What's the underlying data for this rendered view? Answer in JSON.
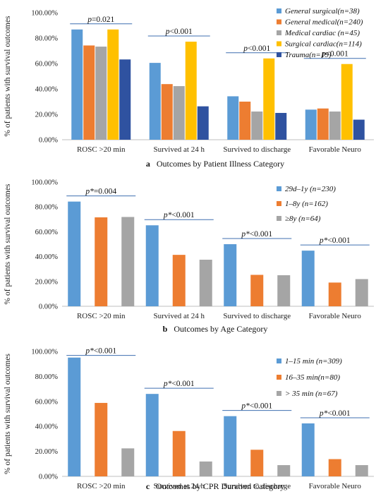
{
  "colors": {
    "blue": "#5b9bd5",
    "orange": "#ed7d31",
    "gray": "#a5a5a5",
    "gold": "#ffc000",
    "navy": "#2f52a0",
    "pline": "#3f6fb0"
  },
  "chart_data": [
    {
      "type": "bar",
      "caption_letter": "a",
      "caption": "Outcomes by Patient Illness Category",
      "ylabel": "% of patients with  survival outcomes",
      "yticks": [
        "0.00%",
        "20.00%",
        "40.00%",
        "60.00%",
        "80.00%",
        "100.00%"
      ],
      "ylim": [
        0,
        100
      ],
      "categories": [
        "ROSC >20 min",
        "Survived at 24 h",
        "Survived to discharge",
        "Favorable Neuro"
      ],
      "pvalues": [
        "p=0.021",
        "p<0.001",
        "p<0.001",
        "p<0.001"
      ],
      "legend_position": "top-right",
      "series": [
        {
          "name": "General surgical(n=38)",
          "color": "blue",
          "values": [
            86.8,
            60.5,
            34.2,
            23.7
          ]
        },
        {
          "name": "General medical(n=240)",
          "color": "orange",
          "values": [
            74.2,
            43.8,
            30.0,
            24.6
          ]
        },
        {
          "name": "Medical cardiac (n=45)",
          "color": "gray",
          "values": [
            73.3,
            42.2,
            22.2,
            22.2
          ]
        },
        {
          "name": "Surgical cardiac(n=114)",
          "color": "gold",
          "values": [
            86.8,
            77.2,
            64.0,
            59.6
          ]
        },
        {
          "name": "Trauma(n=19)",
          "color": "navy",
          "values": [
            63.2,
            26.3,
            21.1,
            15.8
          ]
        }
      ]
    },
    {
      "type": "bar",
      "caption_letter": "b",
      "caption": "Outcomes by Age Category",
      "ylabel": "% of patients with  survival outcomes",
      "yticks": [
        "0.00%",
        "20.00%",
        "40.00%",
        "60.00%",
        "80.00%",
        "100.00%"
      ],
      "ylim": [
        0,
        100
      ],
      "categories": [
        "ROSC >20 min",
        "Survived at 24 h",
        "Survived to discharge",
        "Favorable Neuro"
      ],
      "pvalues": [
        "p*=0.004",
        "p*<0.001",
        "p*<0.001",
        "p*<0.001"
      ],
      "legend_position": "right",
      "series": [
        {
          "name": "29d–1y (n=230)",
          "color": "blue",
          "values": [
            84.3,
            65.2,
            50.0,
            44.8
          ]
        },
        {
          "name": "1–8y (n=162)",
          "color": "orange",
          "values": [
            71.6,
            41.4,
            25.3,
            19.1
          ]
        },
        {
          "name": "≥8y (n=64)",
          "color": "gray",
          "values": [
            71.9,
            37.5,
            25.0,
            21.9
          ]
        }
      ]
    },
    {
      "type": "bar",
      "caption_letter": "c",
      "caption": "Outcomes by CPR Duration Category",
      "ylabel": "% of patients with  survival outcomes",
      "yticks": [
        "0.00%",
        "20.00%",
        "40.00%",
        "60.00%",
        "80.00%",
        "100.00%"
      ],
      "ylim": [
        0,
        100
      ],
      "categories": [
        "ROSC >20 min",
        "Survived at 24 h",
        "Survived to discharge",
        "Favorable Neuro"
      ],
      "pvalues": [
        "p*<0.001",
        "p*<0.001",
        "p*<0.001",
        "p*<0.001"
      ],
      "legend_position": "right",
      "series": [
        {
          "name": "1–15 min (n=309)",
          "color": "blue",
          "values": [
            95.1,
            66.0,
            48.2,
            42.4
          ]
        },
        {
          "name": "16–35 min(n=80)",
          "color": "orange",
          "values": [
            58.8,
            36.3,
            21.3,
            13.8
          ]
        },
        {
          "name": "> 35 min (n=67)",
          "color": "gray",
          "values": [
            22.4,
            11.9,
            9.0,
            9.0
          ]
        }
      ]
    }
  ]
}
